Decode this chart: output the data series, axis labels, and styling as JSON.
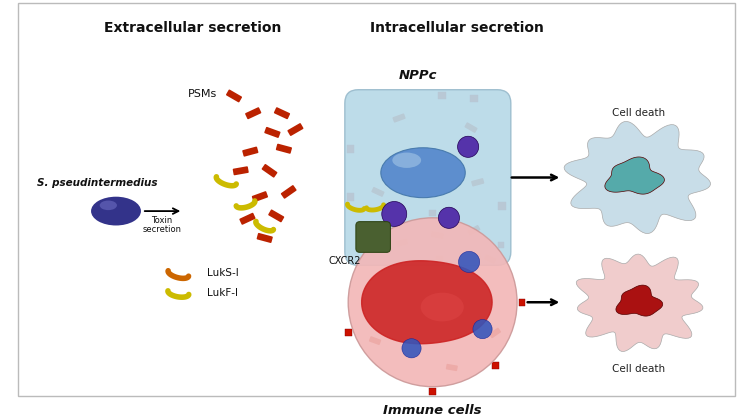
{
  "bg_color": "#ffffff",
  "border_color": "#bbbbbb",
  "title_extracellular": "Extracellular secretion",
  "title_intracellular": "Intracellular secretion",
  "label_nppc": "NPPc",
  "label_psms": "PSMs",
  "label_sp": "S. pseudintermedius",
  "label_toxin": "Toxin\nsecretion",
  "label_luks": "LukS-I",
  "label_lukf": "LukF-I",
  "label_cxcr2": "CXCR2",
  "label_immune": "Immune cells",
  "label_cell_death": "Cell death",
  "color_light_blue_cell": "#b8d9e8",
  "color_blue_nucleus": "#5588cc",
  "color_purple_vesicle": "#5533aa",
  "color_pink_cell": "#f2b8b8",
  "color_red_core": "#cc2222",
  "color_bacteria_red": "#bb2200",
  "color_yellow_toxin": "#ccbb00",
  "color_orange_toxin": "#cc6600",
  "color_sp_purple": "#33338a",
  "color_receptor_red": "#cc1100",
  "color_dead_blue_outer": "#c8dde8",
  "color_dead_blue_inner": "#55aaaa",
  "color_dead_pink_outer": "#f0cccc",
  "color_dead_pink_inner": "#aa1111"
}
